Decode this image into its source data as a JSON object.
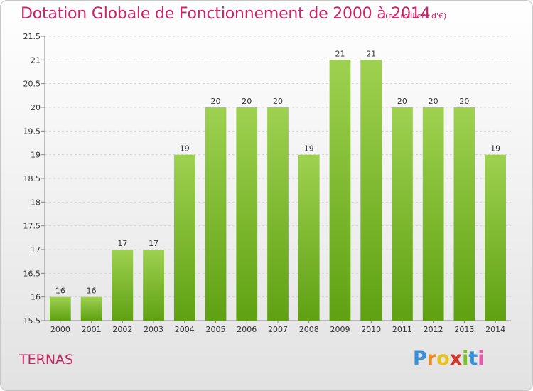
{
  "chart_data": {
    "type": "bar",
    "title": "Dotation Globale de Fonctionnement de 2000 à 2014",
    "subtitle": "(en milliers d'€)",
    "categories": [
      "2000",
      "2001",
      "2002",
      "2003",
      "2004",
      "2005",
      "2006",
      "2007",
      "2008",
      "2009",
      "2010",
      "2011",
      "2012",
      "2013",
      "2014"
    ],
    "values": [
      16,
      16,
      17,
      17,
      19,
      20,
      20,
      20,
      19,
      21,
      21,
      20,
      20,
      20,
      19
    ],
    "ylim": [
      15.5,
      21.5
    ],
    "yticks": [
      "15.5",
      "16",
      "16.5",
      "17",
      "17.5",
      "18",
      "18.5",
      "19",
      "19.5",
      "20",
      "20.5",
      "21",
      "21.5"
    ],
    "grid": true,
    "bar_color": "#7cc12c"
  },
  "commune": "TERNAS",
  "logo": {
    "letters": [
      "P",
      "r",
      "o",
      "x",
      "i",
      "t",
      "i"
    ],
    "colors": [
      "#3a8fd8",
      "#f08a1c",
      "#e8c21c",
      "#d8352a",
      "#7cbf2c",
      "#3a8fd8",
      "#e85aa8"
    ]
  }
}
